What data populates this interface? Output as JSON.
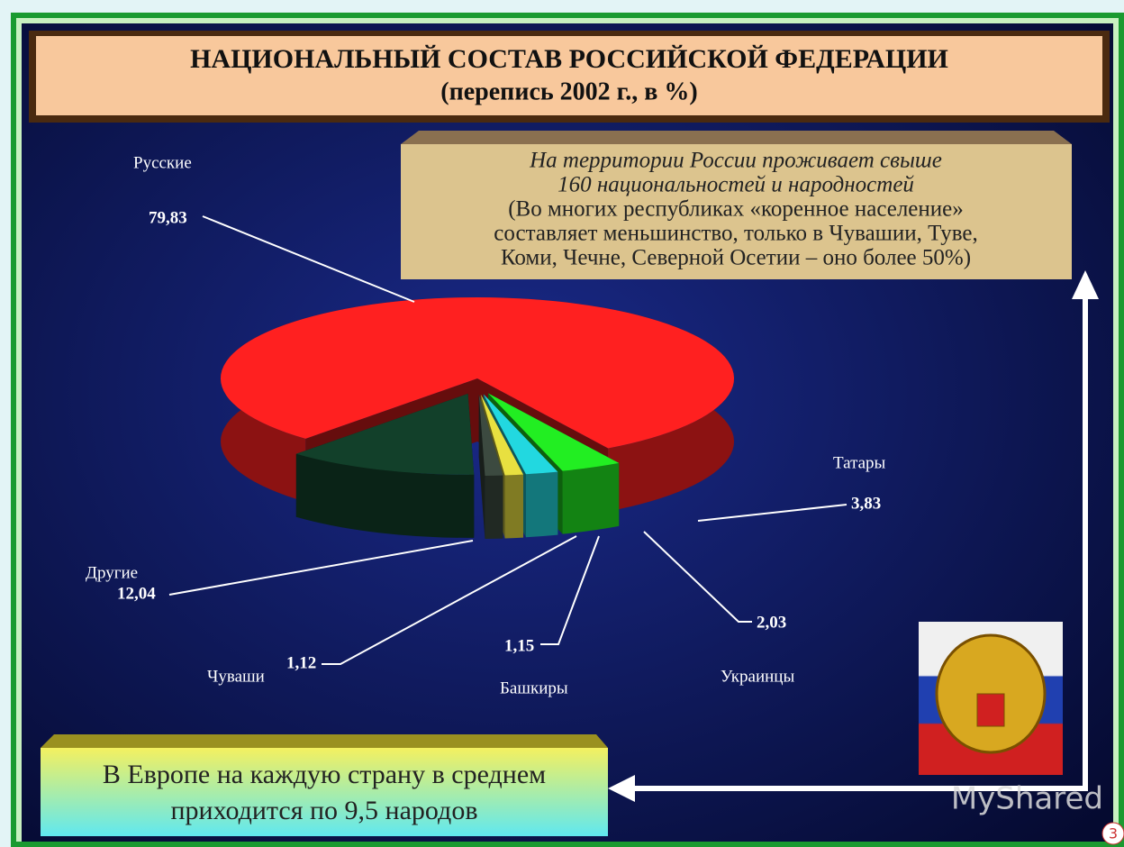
{
  "chart_data": {
    "type": "pie",
    "title": "НАЦИОНАЛЬНЫЙ СОСТАВ РОССИЙСКОЙ ФЕДЕРАЦИИ",
    "subtitle": "(перепись 2002 г., в %)",
    "categories": [
      "Русские",
      "Татары",
      "Украинцы",
      "Башкиры",
      "Чуваши",
      "Другие"
    ],
    "values": [
      79.83,
      3.83,
      2.03,
      1.15,
      1.12,
      12.04
    ],
    "value_labels": [
      "79,83",
      "3,83",
      "2,03",
      "1,15",
      "1,12",
      "12,04"
    ],
    "colors": [
      "#ff2020",
      "#22ee22",
      "#22d8e0",
      "#e8e040",
      "#3c4a40",
      "#12402a"
    ],
    "annotations": {
      "note": [
        "На территории России проживает свыше",
        "160 национальностей и народностей",
        "(Во многих республиках «коренное население»",
        "составляет меньшинство, только в Чувашии, Туве,",
        "Коми, Чечне, Северной Осетии – оно более 50%)"
      ],
      "europe": [
        "В Европе на каждую страну в среднем",
        "приходится по 9,5 народов"
      ]
    }
  },
  "watermark": "MyShared",
  "page_number": 3
}
